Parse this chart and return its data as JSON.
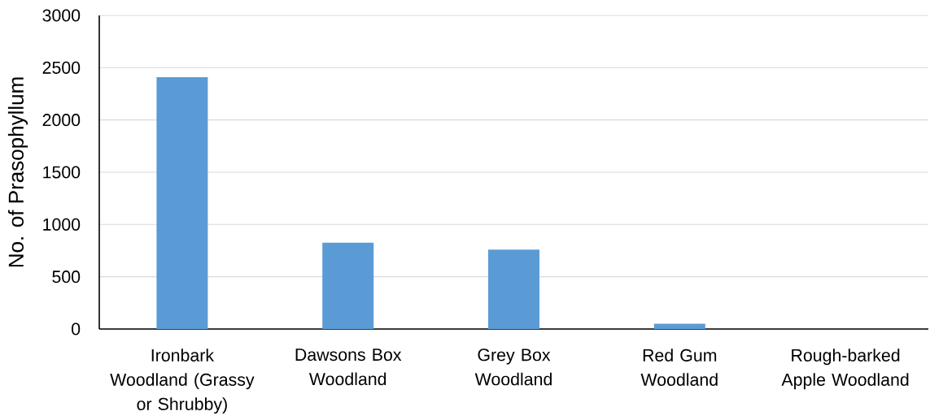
{
  "chart_data": {
    "type": "bar",
    "ylabel": "No. of Prasophyllum",
    "categories": [
      "Ironbark Woodland (Grassy or Shrubby)",
      "Dawsons Box Woodland",
      "Grey Box Woodland",
      "Red Gum Woodland",
      "Rough-barked Apple Woodland"
    ],
    "values": [
      2410,
      825,
      760,
      50,
      0
    ],
    "color": "#5b9bd5",
    "ylim": [
      0,
      3000
    ],
    "yticks": [
      0,
      500,
      1000,
      1500,
      2000,
      2500,
      3000
    ],
    "grid": "y"
  }
}
